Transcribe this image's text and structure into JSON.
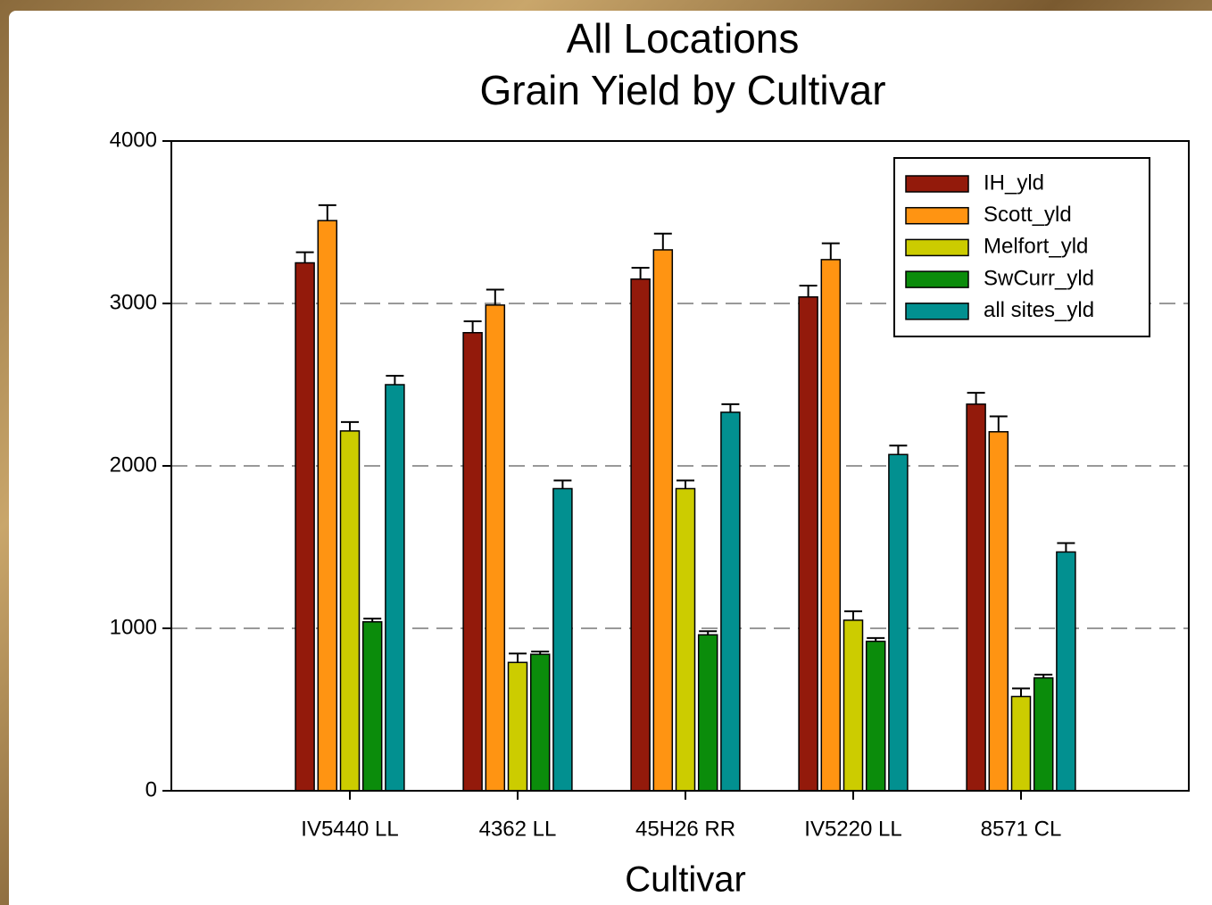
{
  "chart_data": {
    "type": "bar",
    "title": [
      "All Locations",
      "Grain Yield by Cultivar"
    ],
    "x_label": "Cultivar",
    "categories": [
      "IV5440 LL",
      "4362 LL",
      "45H26 RR",
      "IV5220 LL",
      "8571 CL"
    ],
    "series": [
      {
        "name": "IH_yld",
        "color": "#931a0b",
        "values": [
          3250,
          2820,
          3150,
          3040,
          2380
        ],
        "errors": [
          65,
          70,
          70,
          70,
          70
        ]
      },
      {
        "name": "Scott_yld",
        "color": "#ff9412",
        "values": [
          3510,
          2990,
          3330,
          3270,
          2210
        ],
        "errors": [
          95,
          95,
          100,
          100,
          95
        ]
      },
      {
        "name": "Melfort_yld",
        "color": "#cccc00",
        "values": [
          2215,
          790,
          1860,
          1050,
          580
        ],
        "errors": [
          55,
          55,
          50,
          55,
          50
        ]
      },
      {
        "name": "SwCurr_yld",
        "color": "#0b8c0b",
        "values": [
          1040,
          840,
          960,
          920,
          695
        ],
        "errors": [
          20,
          17,
          22,
          20,
          20
        ]
      },
      {
        "name": "all sites_yld",
        "color": "#029090",
        "values": [
          2500,
          1860,
          2330,
          2070,
          1470
        ],
        "errors": [
          55,
          50,
          50,
          55,
          55
        ]
      }
    ],
    "ylim": [
      0,
      4000
    ],
    "yticks": [
      0,
      1000,
      2000,
      3000,
      4000
    ],
    "grid": true,
    "legend": "upper right"
  }
}
